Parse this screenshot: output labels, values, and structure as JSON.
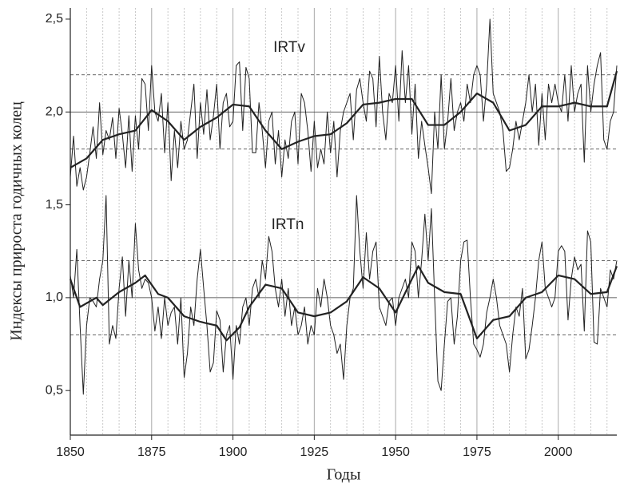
{
  "chart_data": {
    "type": "line",
    "xlabel": "Годы",
    "ylabel": "Индексы прироста годичных колец",
    "annotations": [
      "IRTv",
      "IRTn"
    ],
    "xlim": [
      1850,
      2018
    ],
    "xticks": [
      1850,
      1875,
      1900,
      1925,
      1950,
      1975,
      2000
    ],
    "x_minor_grid": [
      1855,
      1860,
      1865,
      1870,
      1880,
      1885,
      1890,
      1895,
      1905,
      1910,
      1915,
      1920,
      1930,
      1935,
      1940,
      1945,
      1955,
      1960,
      1965,
      1970,
      1980,
      1985,
      1990,
      1995,
      2005,
      2010,
      2015
    ],
    "ylim": [
      0.26,
      2.56
    ],
    "yticks": [
      {
        "value": 0.5,
        "label": "0,5"
      },
      {
        "value": 1.0,
        "label": "1,0"
      },
      {
        "value": 1.5,
        "label": "1,5"
      },
      {
        "value": 2.0,
        "label": "2,0"
      },
      {
        "value": 2.5,
        "label": "2,5"
      }
    ],
    "hlines": [
      {
        "value": 2.2,
        "style": "dashed"
      },
      {
        "value": 2.0,
        "style": "solid"
      },
      {
        "value": 1.8,
        "style": "dashed"
      },
      {
        "value": 1.2,
        "style": "dashed"
      },
      {
        "value": 1.0,
        "style": "solid"
      },
      {
        "value": 0.8,
        "style": "dashed"
      }
    ],
    "x": [
      1850,
      1851,
      1852,
      1853,
      1854,
      1855,
      1856,
      1857,
      1858,
      1859,
      1860,
      1861,
      1862,
      1863,
      1864,
      1865,
      1866,
      1867,
      1868,
      1869,
      1870,
      1871,
      1872,
      1873,
      1874,
      1875,
      1876,
      1877,
      1878,
      1879,
      1880,
      1881,
      1882,
      1883,
      1884,
      1885,
      1886,
      1887,
      1888,
      1889,
      1890,
      1891,
      1892,
      1893,
      1894,
      1895,
      1896,
      1897,
      1898,
      1899,
      1900,
      1901,
      1902,
      1903,
      1904,
      1905,
      1906,
      1907,
      1908,
      1909,
      1910,
      1911,
      1912,
      1913,
      1914,
      1915,
      1916,
      1917,
      1918,
      1919,
      1920,
      1921,
      1922,
      1923,
      1924,
      1925,
      1926,
      1927,
      1928,
      1929,
      1930,
      1931,
      1932,
      1933,
      1934,
      1935,
      1936,
      1937,
      1938,
      1939,
      1940,
      1941,
      1942,
      1943,
      1944,
      1945,
      1946,
      1947,
      1948,
      1949,
      1950,
      1951,
      1952,
      1953,
      1954,
      1955,
      1956,
      1957,
      1958,
      1959,
      1960,
      1961,
      1962,
      1963,
      1964,
      1965,
      1966,
      1967,
      1968,
      1969,
      1970,
      1971,
      1972,
      1973,
      1974,
      1975,
      1976,
      1977,
      1978,
      1979,
      1980,
      1981,
      1982,
      1983,
      1984,
      1985,
      1986,
      1987,
      1988,
      1989,
      1990,
      1991,
      1992,
      1993,
      1994,
      1995,
      1996,
      1997,
      1998,
      1999,
      2000,
      2001,
      2002,
      2003,
      2004,
      2005,
      2006,
      2007,
      2008,
      2009,
      2010,
      2011,
      2012,
      2013,
      2014,
      2015,
      2016,
      2017,
      2018
    ],
    "series": [
      {
        "color": "#222222",
        "width": 1,
        "values": [
          1.65,
          1.87,
          1.6,
          1.7,
          1.58,
          1.65,
          1.78,
          1.92,
          1.75,
          2.05,
          1.77,
          1.9,
          1.85,
          1.97,
          1.75,
          2.02,
          1.88,
          1.7,
          1.98,
          1.68,
          1.98,
          1.8,
          2.18,
          2.15,
          1.9,
          2.25,
          2.0,
          1.95,
          2.1,
          1.78,
          2.05,
          1.63,
          1.9,
          1.7,
          1.95,
          1.8,
          1.85,
          2.0,
          2.15,
          1.75,
          2.05,
          1.88,
          2.12,
          1.85,
          1.98,
          2.15,
          1.8,
          2.05,
          2.1,
          1.92,
          1.95,
          2.25,
          2.27,
          1.9,
          2.24,
          2.18,
          1.78,
          1.78,
          2.05,
          1.9,
          1.7,
          1.95,
          2.0,
          1.72,
          1.9,
          1.65,
          1.85,
          1.75,
          1.95,
          2.0,
          1.72,
          2.1,
          2.05,
          1.9,
          1.68,
          1.95,
          1.7,
          1.8,
          1.72,
          2.0,
          1.78,
          1.95,
          1.65,
          1.9,
          2.0,
          2.05,
          2.1,
          1.85,
          2.12,
          2.18,
          2.05,
          1.95,
          2.22,
          2.18,
          1.92,
          2.3,
          2.0,
          1.85,
          2.1,
          2.05,
          2.25,
          1.95,
          2.33,
          2.05,
          2.25,
          1.88,
          2.15,
          1.75,
          1.95,
          1.82,
          1.7,
          1.56,
          2.0,
          1.8,
          2.2,
          1.8,
          1.95,
          2.18,
          1.9,
          2.0,
          2.05,
          1.95,
          2.15,
          2.05,
          2.2,
          2.25,
          2.2,
          1.95,
          2.15,
          2.5,
          2.1,
          2.05,
          2.0,
          1.9,
          1.68,
          1.7,
          1.8,
          1.95,
          1.85,
          1.95,
          2.05,
          2.2,
          2.0,
          2.15,
          1.82,
          2.1,
          1.85,
          2.15,
          2.05,
          2.15,
          2.05,
          2.0,
          2.2,
          1.95,
          2.25,
          2.0,
          2.1,
          2.15,
          1.73,
          2.25,
          2.0,
          2.15,
          2.25,
          2.32,
          1.85,
          1.8,
          1.95,
          2.0,
          2.25
        ]
      },
      {
        "color": "#222222",
        "width": 2.2,
        "x": [
          1850,
          1855,
          1860,
          1865,
          1870,
          1875,
          1880,
          1885,
          1890,
          1895,
          1900,
          1905,
          1910,
          1915,
          1920,
          1925,
          1930,
          1935,
          1940,
          1945,
          1950,
          1955,
          1960,
          1965,
          1970,
          1975,
          1980,
          1985,
          1990,
          1995,
          2000,
          2005,
          2010,
          2015,
          2018
        ],
        "values": [
          1.7,
          1.75,
          1.85,
          1.88,
          1.9,
          2.01,
          1.95,
          1.85,
          1.92,
          1.97,
          2.04,
          2.03,
          1.9,
          1.8,
          1.84,
          1.87,
          1.88,
          1.94,
          2.04,
          2.05,
          2.07,
          2.07,
          1.93,
          1.93,
          2.0,
          2.1,
          2.05,
          1.9,
          1.93,
          2.03,
          2.03,
          2.05,
          2.03,
          2.03,
          2.22
        ]
      },
      {
        "color": "#222222",
        "width": 1,
        "values": [
          1.12,
          1.0,
          1.26,
          0.85,
          0.48,
          0.85,
          1.0,
          0.98,
          0.95,
          1.1,
          1.2,
          1.55,
          0.75,
          0.85,
          0.78,
          1.05,
          1.22,
          0.9,
          1.2,
          1.0,
          1.4,
          1.15,
          1.05,
          1.1,
          1.08,
          1.0,
          0.82,
          0.95,
          0.78,
          1.0,
          0.85,
          0.92,
          0.95,
          0.75,
          1.0,
          0.57,
          0.7,
          0.95,
          0.85,
          1.1,
          1.26,
          1.05,
          0.85,
          0.6,
          0.65,
          0.93,
          0.88,
          0.6,
          0.8,
          0.85,
          0.56,
          0.85,
          0.75,
          0.95,
          1.0,
          0.85,
          1.05,
          1.1,
          1.0,
          1.2,
          1.1,
          1.33,
          1.25,
          1.05,
          0.95,
          1.1,
          0.9,
          1.05,
          0.85,
          0.95,
          0.8,
          0.85,
          0.95,
          0.75,
          0.85,
          0.8,
          1.05,
          0.95,
          1.1,
          1.0,
          0.85,
          0.8,
          0.7,
          0.75,
          0.56,
          0.85,
          1.0,
          1.05,
          1.55,
          1.25,
          1.05,
          1.35,
          1.1,
          1.25,
          1.3,
          0.95,
          0.9,
          0.85,
          0.98,
          1.0,
          0.85,
          1.0,
          1.05,
          1.1,
          1.0,
          1.3,
          1.25,
          1.0,
          1.2,
          1.45,
          1.2,
          1.48,
          1.0,
          0.55,
          0.5,
          0.75,
          0.98,
          1.0,
          0.75,
          0.9,
          1.2,
          1.3,
          1.31,
          1.0,
          0.75,
          0.72,
          0.68,
          0.75,
          0.92,
          1.0,
          1.1,
          1.0,
          0.85,
          0.8,
          0.75,
          0.6,
          0.8,
          0.95,
          0.9,
          1.05,
          0.67,
          0.72,
          0.85,
          1.0,
          1.2,
          1.3,
          1.05,
          1.0,
          0.95,
          1.0,
          1.25,
          1.28,
          1.25,
          0.88,
          1.1,
          1.22,
          1.15,
          1.18,
          0.82,
          1.36,
          1.3,
          0.76,
          0.75,
          1.05,
          1.0,
          0.95,
          1.15,
          1.1,
          1.2
        ]
      },
      {
        "color": "#222222",
        "width": 2.2,
        "x": [
          1850,
          1853,
          1858,
          1860,
          1865,
          1870,
          1873,
          1877,
          1880,
          1885,
          1890,
          1895,
          1898,
          1902,
          1905,
          1910,
          1915,
          1920,
          1925,
          1930,
          1935,
          1940,
          1945,
          1950,
          1955,
          1957,
          1960,
          1965,
          1970,
          1975,
          1980,
          1985,
          1990,
          1995,
          2000,
          2005,
          2010,
          2015,
          2018
        ],
        "values": [
          1.1,
          0.95,
          1.0,
          0.96,
          1.03,
          1.08,
          1.12,
          1.02,
          1.0,
          0.9,
          0.87,
          0.85,
          0.77,
          0.84,
          0.95,
          1.07,
          1.05,
          0.92,
          0.9,
          0.92,
          0.98,
          1.11,
          1.05,
          0.92,
          1.1,
          1.17,
          1.08,
          1.03,
          1.02,
          0.78,
          0.88,
          0.9,
          1.0,
          1.03,
          1.12,
          1.1,
          1.02,
          1.03,
          1.17
        ]
      }
    ]
  }
}
